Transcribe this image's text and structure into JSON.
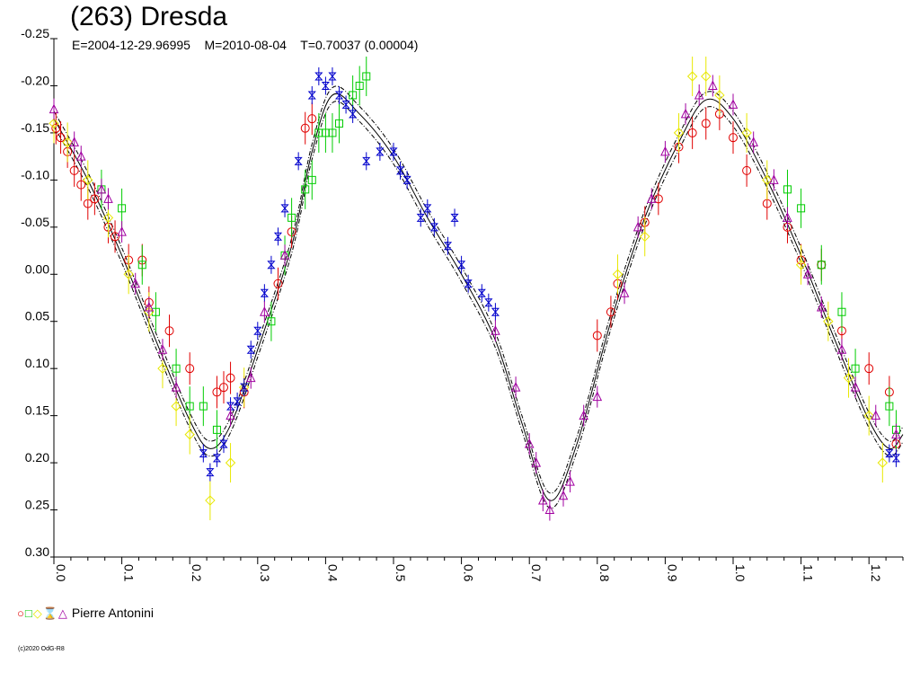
{
  "title": "(263) Dresda",
  "subtitle": "E=2004-12-29.96995    M=2010-08-04    T=0.70037 (0.00004)",
  "copyright": "(c)2020 OdG-R8",
  "legend": {
    "label": "Pierre Antonini",
    "symbols": [
      {
        "glyph": "○",
        "color": "#e00000",
        "name": "circle-marker-icon"
      },
      {
        "glyph": "□",
        "color": "#00cc00",
        "name": "square-marker-icon"
      },
      {
        "glyph": "◇",
        "color": "#e8e800",
        "name": "diamond-marker-icon"
      },
      {
        "glyph": "⌛",
        "color": "#0000cc",
        "name": "hourglass-marker-icon"
      },
      {
        "glyph": "△",
        "color": "#a000a0",
        "name": "triangle-marker-icon"
      }
    ]
  },
  "chart_data": {
    "type": "scatter",
    "title": "(263) Dresda",
    "xlabel": "",
    "ylabel": "",
    "xlim": [
      0.0,
      1.25
    ],
    "ylim": [
      -0.25,
      0.3
    ],
    "y_inverted": true,
    "xticks": [
      "0.0",
      "0.1",
      "0.2",
      "0.3",
      "0.4",
      "0.5",
      "0.6",
      "0.7",
      "0.8",
      "0.9",
      "1.0",
      "1.1",
      "1.2"
    ],
    "yticks": [
      "-0.25",
      "-0.20",
      "-0.15",
      "-0.10",
      "-0.05",
      "0.00",
      "0.05",
      "0.10",
      "0.15",
      "0.20",
      "0.25",
      "0.30"
    ],
    "grid": false,
    "legend_position": "bottom-left",
    "model_curve": {
      "x": [
        0.0,
        0.05,
        0.1,
        0.15,
        0.2,
        0.23,
        0.26,
        0.3,
        0.35,
        0.38,
        0.41,
        0.45,
        0.5,
        0.55,
        0.6,
        0.65,
        0.69,
        0.73,
        0.77,
        0.82,
        0.87,
        0.92,
        0.96,
        1.0,
        1.05,
        1.1,
        1.15,
        1.2,
        1.23,
        1.25
      ],
      "y": [
        -0.165,
        -0.1,
        -0.02,
        0.07,
        0.155,
        0.185,
        0.16,
        0.08,
        -0.03,
        -0.13,
        -0.19,
        -0.17,
        -0.125,
        -0.06,
        0.0,
        0.07,
        0.16,
        0.24,
        0.18,
        0.05,
        -0.06,
        -0.14,
        -0.185,
        -0.165,
        -0.1,
        -0.02,
        0.07,
        0.155,
        0.185,
        0.17
      ]
    },
    "series": [
      {
        "name": "Pierre Antonini",
        "marker": "circle",
        "color": "#e00000",
        "x": [
          0.003,
          0.01,
          0.02,
          0.03,
          0.04,
          0.05,
          0.06,
          0.08,
          0.09,
          0.11,
          0.13,
          0.14,
          0.17,
          0.2,
          0.24,
          0.25,
          0.26,
          0.28,
          0.33,
          0.35,
          0.37,
          0.38,
          0.8,
          0.82,
          0.83,
          0.87,
          0.89,
          0.92,
          0.94,
          0.96,
          0.98,
          1.0,
          1.02,
          1.05,
          1.08,
          1.1,
          1.13,
          1.16,
          1.2,
          1.23,
          1.24
        ],
        "y": [
          -0.155,
          -0.145,
          -0.13,
          -0.11,
          -0.095,
          -0.075,
          -0.08,
          -0.05,
          -0.04,
          -0.015,
          -0.015,
          0.03,
          0.06,
          0.1,
          0.125,
          0.12,
          0.11,
          0.125,
          0.01,
          -0.045,
          -0.155,
          -0.165,
          0.065,
          0.04,
          0.01,
          -0.055,
          -0.08,
          -0.135,
          -0.15,
          -0.16,
          -0.17,
          -0.145,
          -0.11,
          -0.075,
          -0.05,
          -0.015,
          -0.01,
          0.06,
          0.1,
          0.125,
          0.18
        ]
      },
      {
        "name": "",
        "marker": "square",
        "color": "#00cc00",
        "x": [
          0.07,
          0.1,
          0.13,
          0.15,
          0.18,
          0.2,
          0.22,
          0.24,
          0.32,
          0.34,
          0.35,
          0.37,
          0.38,
          0.39,
          0.4,
          0.41,
          0.42,
          0.44,
          0.45,
          0.46,
          1.08,
          1.1,
          1.13,
          1.16,
          1.18,
          1.23,
          1.24
        ],
        "y": [
          -0.09,
          -0.07,
          -0.01,
          0.04,
          0.1,
          0.14,
          0.14,
          0.165,
          0.05,
          -0.02,
          -0.06,
          -0.09,
          -0.1,
          -0.15,
          -0.15,
          -0.15,
          -0.16,
          -0.19,
          -0.2,
          -0.21,
          -0.09,
          -0.07,
          -0.01,
          0.04,
          0.1,
          0.14,
          0.165
        ]
      },
      {
        "name": "",
        "marker": "diamond",
        "color": "#e8e800",
        "x": [
          0.0,
          0.02,
          0.05,
          0.08,
          0.11,
          0.14,
          0.16,
          0.18,
          0.2,
          0.23,
          0.26,
          0.28,
          0.83,
          0.87,
          0.92,
          0.94,
          0.96,
          0.98,
          1.02,
          1.05,
          1.1,
          1.14,
          1.17,
          1.2,
          1.22
        ],
        "y": [
          -0.16,
          -0.14,
          -0.1,
          -0.06,
          0.0,
          0.04,
          0.1,
          0.14,
          0.17,
          0.24,
          0.2,
          0.12,
          0.0,
          -0.04,
          -0.15,
          -0.21,
          -0.21,
          -0.19,
          -0.15,
          -0.1,
          -0.01,
          0.05,
          0.11,
          0.15,
          0.2
        ]
      },
      {
        "name": "",
        "marker": "hourglass",
        "color": "#0000cc",
        "x": [
          0.22,
          0.23,
          0.24,
          0.25,
          0.26,
          0.27,
          0.28,
          0.29,
          0.3,
          0.31,
          0.32,
          0.33,
          0.34,
          0.36,
          0.38,
          0.39,
          0.4,
          0.41,
          0.42,
          0.43,
          0.44,
          0.46,
          0.48,
          0.5,
          0.51,
          0.52,
          0.54,
          0.55,
          0.56,
          0.58,
          0.59,
          0.6,
          0.61,
          0.63,
          0.64,
          0.65,
          1.23,
          1.24
        ],
        "y": [
          0.19,
          0.21,
          0.195,
          0.18,
          0.14,
          0.135,
          0.12,
          0.08,
          0.06,
          0.02,
          -0.01,
          -0.04,
          -0.07,
          -0.12,
          -0.19,
          -0.21,
          -0.2,
          -0.21,
          -0.19,
          -0.18,
          -0.17,
          -0.12,
          -0.13,
          -0.13,
          -0.11,
          -0.1,
          -0.06,
          -0.07,
          -0.05,
          -0.03,
          -0.06,
          -0.01,
          0.01,
          0.02,
          0.03,
          0.04,
          0.19,
          0.195
        ]
      },
      {
        "name": "",
        "marker": "triangle",
        "color": "#a000a0",
        "x": [
          0.0,
          0.03,
          0.04,
          0.07,
          0.08,
          0.1,
          0.12,
          0.14,
          0.16,
          0.18,
          0.26,
          0.29,
          0.31,
          0.34,
          0.65,
          0.68,
          0.7,
          0.71,
          0.72,
          0.73,
          0.75,
          0.76,
          0.78,
          0.8,
          0.84,
          0.86,
          0.88,
          0.9,
          0.93,
          0.95,
          0.97,
          1.0,
          1.03,
          1.06,
          1.08,
          1.11,
          1.13,
          1.16,
          1.18,
          1.21,
          1.24
        ],
        "y": [
          -0.175,
          -0.14,
          -0.125,
          -0.09,
          -0.08,
          -0.045,
          0.01,
          0.035,
          0.08,
          0.12,
          0.15,
          0.11,
          0.04,
          -0.02,
          0.06,
          0.12,
          0.18,
          0.2,
          0.24,
          0.25,
          0.235,
          0.22,
          0.15,
          0.13,
          0.02,
          -0.05,
          -0.08,
          -0.13,
          -0.17,
          -0.19,
          -0.2,
          -0.18,
          -0.14,
          -0.1,
          -0.06,
          0.0,
          0.035,
          0.08,
          0.12,
          0.15,
          0.17
        ]
      }
    ]
  }
}
